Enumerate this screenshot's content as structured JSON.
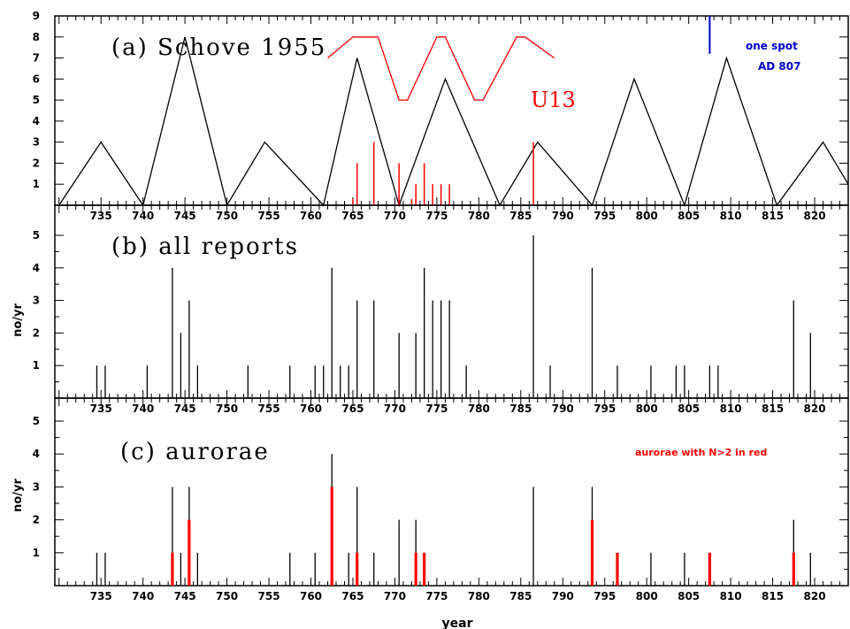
{
  "chart_data": [
    {
      "type": "line",
      "panel": "a",
      "title": "(a) Schove 1955",
      "xlim": [
        729.5,
        824
      ],
      "ylim": [
        0,
        9
      ],
      "yticks": [
        1,
        2,
        3,
        4,
        5,
        6,
        7,
        8,
        9
      ],
      "xticks": [
        735,
        740,
        745,
        750,
        755,
        760,
        765,
        770,
        775,
        780,
        785,
        790,
        795,
        800,
        805,
        810,
        815,
        820
      ],
      "series": [
        {
          "color": "#000000",
          "x": [
            730,
            735,
            740,
            745,
            750,
            754.5,
            761.5,
            765.5,
            770.5,
            776,
            782.5,
            787,
            793.5,
            798.5,
            804.5,
            809.5,
            815.5,
            821,
            824
          ],
          "y": [
            0,
            3,
            0,
            8,
            0,
            3,
            0,
            7,
            0,
            6,
            0,
            3,
            0,
            6,
            0,
            7,
            0,
            3,
            1
          ]
        },
        {
          "name": "U13",
          "color": "#ff0000",
          "x": [
            762,
            765,
            768,
            770.5,
            771.5,
            775,
            776,
            779.5,
            780.5,
            784.5,
            785.5,
            789
          ],
          "y": [
            7,
            8,
            8,
            5,
            5,
            8,
            8,
            5,
            5,
            8,
            8,
            7
          ]
        }
      ],
      "red_bars": {
        "x": [
          765,
          765.5,
          767.5,
          770.5,
          772,
          772.5,
          773.5,
          774.5,
          775.5,
          776.5,
          786.5
        ],
        "y": [
          0.3,
          2,
          3,
          2,
          0.3,
          1,
          2,
          1,
          1,
          1,
          3
        ]
      },
      "blue_marker": {
        "x": 807.5,
        "y0": 7.2,
        "y1": 9,
        "label1": "one spot",
        "label2": "AD 807"
      }
    },
    {
      "type": "bar",
      "panel": "b",
      "title": "(b) all reports",
      "ylabel": "no/yr",
      "ylim": [
        0,
        5.5
      ],
      "yticks": [
        1,
        2,
        3,
        4,
        5
      ],
      "bars": {
        "x": [
          734.5,
          735.5,
          740.5,
          743.5,
          744.5,
          745.5,
          746.5,
          752.5,
          757.5,
          760.5,
          761.5,
          762.5,
          763.5,
          764.5,
          765.5,
          767.5,
          770.5,
          772.5,
          773.5,
          774.5,
          775.5,
          776.5,
          778.5,
          786.5,
          788.5,
          793.5,
          796.5,
          800.5,
          803.5,
          804.5,
          807.5,
          808.5,
          817.5,
          819.5
        ],
        "y": [
          1,
          1,
          1,
          4,
          2,
          3,
          1,
          1,
          1,
          1,
          1,
          4,
          1,
          1,
          3,
          3,
          2,
          2,
          4,
          3,
          3,
          3,
          1,
          5,
          1,
          4,
          1,
          1,
          1,
          1,
          1,
          1,
          3,
          2
        ]
      }
    },
    {
      "type": "bar",
      "panel": "c",
      "title": "(c) aurorae",
      "ylabel": "no/yr",
      "xlabel": "year",
      "ylim": [
        0,
        5.5
      ],
      "yticks": [
        1,
        2,
        3,
        4,
        5
      ],
      "legend_note": "aurorae with N>2 in red",
      "bars": {
        "x": [
          734.5,
          735.5,
          743.5,
          744.5,
          745.5,
          746.5,
          757.5,
          760.5,
          762.5,
          764.5,
          765.5,
          767.5,
          770.5,
          772.5,
          786.5,
          793.5,
          800.5,
          804.5,
          817.5,
          819.5
        ],
        "y": [
          1,
          1,
          3,
          1,
          3,
          1,
          1,
          1,
          4,
          1,
          3,
          1,
          2,
          2,
          3,
          3,
          1,
          1,
          2,
          1
        ]
      },
      "red_bars": {
        "x": [
          743.5,
          745.5,
          762.5,
          765.5,
          772.5,
          773.5,
          793.5,
          796.5,
          807.5,
          817.5
        ],
        "y": [
          1,
          2,
          3,
          1,
          1,
          1,
          2,
          1,
          1,
          1
        ]
      }
    }
  ]
}
